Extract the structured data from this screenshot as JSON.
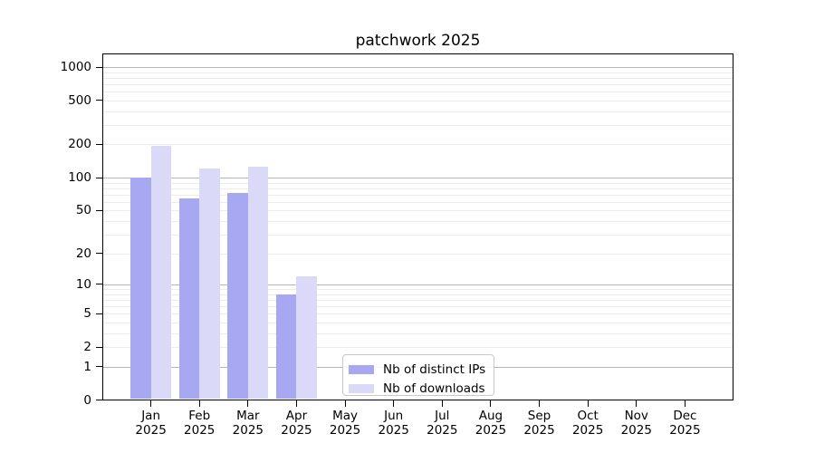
{
  "figure": {
    "title": "patchwork 2025"
  },
  "chart_data": {
    "type": "bar",
    "title": "patchwork 2025",
    "categories": [
      "Jan 2025",
      "Feb 2025",
      "Mar 2025",
      "Apr 2025",
      "May 2025",
      "Jun 2025",
      "Jul 2025",
      "Aug 2025",
      "Sep 2025",
      "Oct 2025",
      "Nov 2025",
      "Dec 2025"
    ],
    "series": [
      {
        "name": "Nb of distinct IPs",
        "color": "#a8a7f2",
        "values": [
          100,
          65,
          72,
          8,
          0,
          0,
          0,
          0,
          0,
          0,
          0,
          0
        ]
      },
      {
        "name": "Nb of downloads",
        "color": "#dad9f8",
        "values": [
          195,
          120,
          125,
          12,
          0,
          0,
          0,
          0,
          0,
          0,
          0,
          0
        ]
      }
    ],
    "xlabel": "",
    "ylabel": "",
    "yscale": "symlog",
    "yticks": [
      0,
      1,
      2,
      5,
      10,
      20,
      50,
      100,
      200,
      500,
      1000
    ],
    "ylim": [
      0,
      1320
    ],
    "grid": "horizontal, minor ticks 2-9 per decade faint, decades darker",
    "legend_position": "inside axes, lower center-left"
  },
  "colors": {
    "series_distinct_ips": "#a8a7f2",
    "series_downloads": "#dad9f8",
    "grid_major": "#b6b6b6",
    "grid_minor": "#ececec",
    "axis": "#000000"
  }
}
